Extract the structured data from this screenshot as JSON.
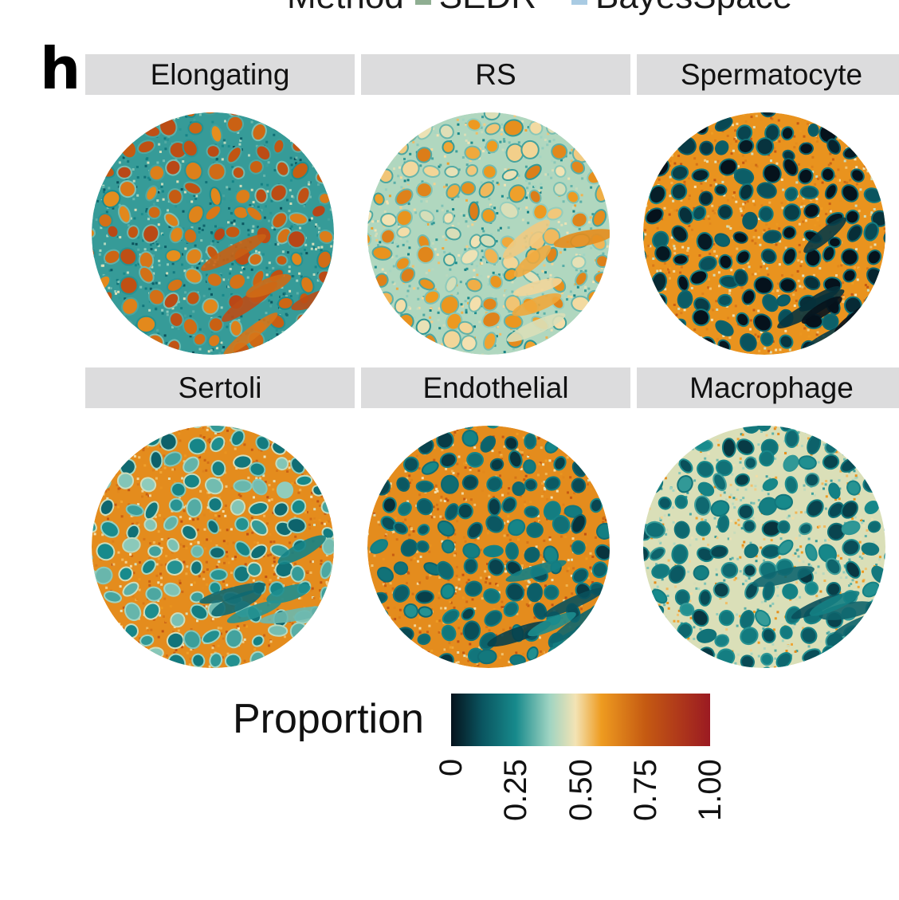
{
  "panel_label": "h",
  "method_legend": {
    "title": "Method",
    "items": [
      {
        "label": "SEDR",
        "color": "#8fae92"
      },
      {
        "label": "BayesSpace",
        "color": "#a9cbe3"
      }
    ]
  },
  "chart_data": {
    "type": "heatmap",
    "facets": [
      {
        "name": "Elongating"
      },
      {
        "name": "RS"
      },
      {
        "name": "Spermatocyte"
      },
      {
        "name": "Sertoli"
      },
      {
        "name": "Endothelial"
      },
      {
        "name": "Macrophage"
      }
    ],
    "colorbar": {
      "title": "Proportion",
      "range": [
        0,
        1
      ],
      "ticks": [
        "0",
        "0.25",
        "0.50",
        "0.75",
        "1.00"
      ],
      "tick_values": [
        0,
        0.25,
        0.5,
        0.75,
        1.0
      ],
      "colors": [
        {
          "value": 0.0,
          "color": "#05121c"
        },
        {
          "value": 0.12,
          "color": "#0a5560"
        },
        {
          "value": 0.25,
          "color": "#178a8c"
        },
        {
          "value": 0.38,
          "color": "#9fd4c2"
        },
        {
          "value": 0.48,
          "color": "#f3e3b4"
        },
        {
          "value": 0.58,
          "color": "#ee9b20"
        },
        {
          "value": 0.75,
          "color": "#c55a12"
        },
        {
          "value": 1.0,
          "color": "#9b1a22"
        }
      ]
    }
  }
}
